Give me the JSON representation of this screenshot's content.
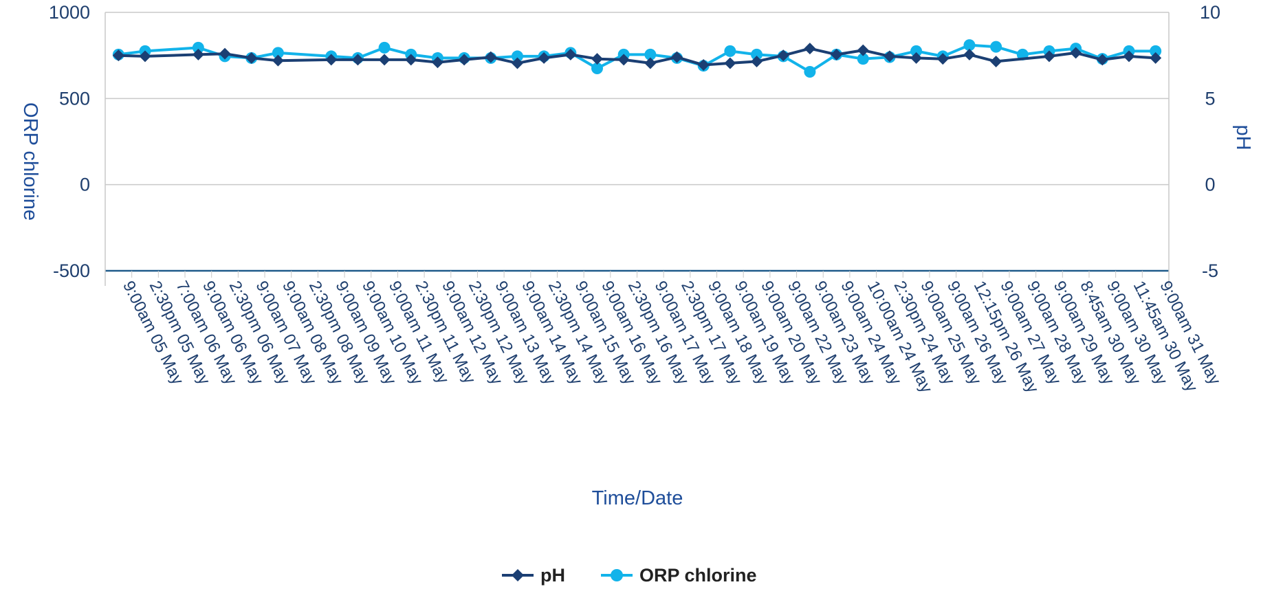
{
  "chart_data": {
    "type": "line",
    "title": "",
    "xlabel": "Time/Date",
    "ylabel_left": "ORP chlorine",
    "ylabel_right": "pH",
    "ylim_left": [
      -500,
      1000
    ],
    "yticks_left": [
      "1000",
      "500",
      "0",
      "-500"
    ],
    "ylim_right": [
      -5,
      10
    ],
    "yticks_right": [
      "10",
      "5",
      "0",
      "-5"
    ],
    "grid": true,
    "legend_position": "bottom",
    "categories": [
      "9:00am 05 May",
      "2:30pm 05 May",
      "7:00am 06 May",
      "9:00am 06 May",
      "2:30pm 06 May",
      "9:00am 07 May",
      "9:00am 08 May",
      "2:30pm 08 May",
      "9:00am 09 May",
      "9:00am 10 May",
      "9:00am 11 May",
      "2:30pm 11 May",
      "9:00am 12 May",
      "2:30pm 12 May",
      "9:00am 13 May",
      "9:00am 14 May",
      "2:30pm 14 May",
      "9:00am 15 May",
      "9:00am 16 May",
      "2:30pm 16 May",
      "9:00am 17 May",
      "2:30pm 17 May",
      "9:00am 18 May",
      "9:00am 19 May",
      "9:00am 20 May",
      "9:00am 22 May",
      "9:00am 23 May",
      "9:00am 24 May",
      "10:00am 24 May",
      "2:30pm 24 May",
      "9:00am 25 May",
      "9:00am 26 May",
      "12:15pm 26 May",
      "9:00am 27 May",
      "9:00am 28 May",
      "9:00am 29 May",
      "8:45am 30 May",
      "9:00am 30 May",
      "11:45am 30 May",
      "9:00am 31 May"
    ],
    "series": [
      {
        "name": "pH",
        "axis": "right",
        "color": "#1b3f73",
        "marker": "diamond",
        "points": [
          [
            0,
            7.5
          ],
          [
            1,
            7.45
          ],
          [
            3,
            7.55
          ],
          [
            4,
            7.6
          ],
          [
            5,
            7.35
          ],
          [
            6,
            7.2
          ],
          [
            8,
            7.25
          ],
          [
            9,
            7.25
          ],
          [
            10,
            7.25
          ],
          [
            11,
            7.25
          ],
          [
            12,
            7.1
          ],
          [
            13,
            7.25
          ],
          [
            14,
            7.4
          ],
          [
            15,
            7.05
          ],
          [
            16,
            7.35
          ],
          [
            17,
            7.55
          ],
          [
            18,
            7.3
          ],
          [
            19,
            7.25
          ],
          [
            20,
            7.05
          ],
          [
            21,
            7.4
          ],
          [
            22,
            6.95
          ],
          [
            23,
            7.05
          ],
          [
            24,
            7.15
          ],
          [
            25,
            7.5
          ],
          [
            26,
            7.9
          ],
          [
            27,
            7.55
          ],
          [
            28,
            7.8
          ],
          [
            29,
            7.45
          ],
          [
            30,
            7.35
          ],
          [
            31,
            7.3
          ],
          [
            32,
            7.55
          ],
          [
            33,
            7.15
          ],
          [
            35,
            7.45
          ],
          [
            36,
            7.65
          ],
          [
            37,
            7.25
          ],
          [
            38,
            7.45
          ],
          [
            39,
            7.35
          ]
        ]
      },
      {
        "name": "ORP chlorine",
        "axis": "left",
        "color": "#12b3ea",
        "marker": "circle",
        "points": [
          [
            0,
            755
          ],
          [
            1,
            775
          ],
          [
            3,
            795
          ],
          [
            4,
            745
          ],
          [
            5,
            735
          ],
          [
            6,
            765
          ],
          [
            8,
            745
          ],
          [
            9,
            735
          ],
          [
            10,
            795
          ],
          [
            11,
            755
          ],
          [
            12,
            735
          ],
          [
            13,
            735
          ],
          [
            14,
            735
          ],
          [
            15,
            745
          ],
          [
            16,
            745
          ],
          [
            17,
            765
          ],
          [
            18,
            675
          ],
          [
            19,
            755
          ],
          [
            20,
            755
          ],
          [
            21,
            735
          ],
          [
            22,
            690
          ],
          [
            23,
            775
          ],
          [
            24,
            755
          ],
          [
            25,
            745
          ],
          [
            26,
            655
          ],
          [
            27,
            755
          ],
          [
            28,
            730
          ],
          [
            29,
            740
          ],
          [
            30,
            775
          ],
          [
            31,
            745
          ],
          [
            32,
            810
          ],
          [
            33,
            800
          ],
          [
            34,
            755
          ],
          [
            35,
            775
          ],
          [
            36,
            790
          ],
          [
            37,
            730
          ],
          [
            38,
            775
          ],
          [
            39,
            775
          ]
        ]
      }
    ]
  }
}
